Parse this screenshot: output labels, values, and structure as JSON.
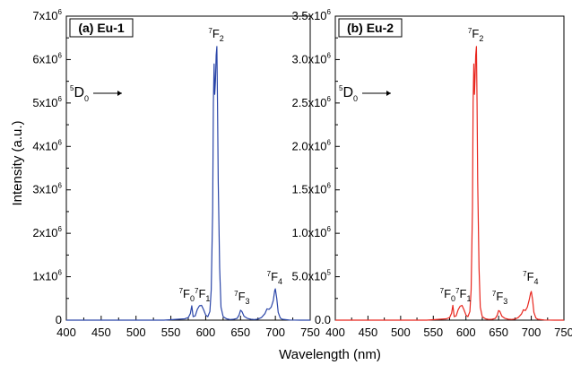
{
  "x_axis_label": "Wavelength (nm)",
  "y_axis_label": "Intensity (a.u.)",
  "chart_data": [
    {
      "type": "line",
      "panel_title": "(a) Eu-1",
      "color": "#2b46a8",
      "xlim": [
        400,
        750
      ],
      "ylim": [
        0,
        7000000
      ],
      "x_ticks": [
        "400",
        "450",
        "500",
        "550",
        "600",
        "650",
        "700",
        "750"
      ],
      "y_ticks": [
        {
          "mant": "0",
          "exp": ""
        },
        {
          "mant": "1x10",
          "exp": "6"
        },
        {
          "mant": "2x10",
          "exp": "6"
        },
        {
          "mant": "3x10",
          "exp": "6"
        },
        {
          "mant": "4x10",
          "exp": "6"
        },
        {
          "mant": "5x10",
          "exp": "6"
        },
        {
          "mant": "6x10",
          "exp": "6"
        },
        {
          "mant": "7x10",
          "exp": "6"
        }
      ],
      "annotations": {
        "d0": {
          "sup": "5",
          "base": "D",
          "sub": "0"
        },
        "f2": {
          "sup": "7",
          "base": "F",
          "sub": "2"
        },
        "f0f1": {
          "sup1": "7",
          "base1": "F",
          "sub1": "0",
          "sup2": "7",
          "base2": "F",
          "sub2": "1"
        },
        "f3": {
          "sup": "7",
          "base": "F",
          "sub": "3"
        },
        "f4": {
          "sup": "7",
          "base": "F",
          "sub": "4"
        }
      },
      "series": [
        {
          "x": [
            400,
            450,
            500,
            540,
            560,
            570,
            575,
            578,
            580,
            582,
            585,
            588,
            591,
            594,
            597,
            600,
            603,
            606,
            608,
            610,
            611,
            612,
            613,
            614,
            615,
            616,
            617,
            618,
            620,
            622,
            625,
            630,
            635,
            640,
            645,
            648,
            650,
            652,
            655,
            660,
            665,
            670,
            675,
            680,
            685,
            688,
            691,
            694,
            697,
            699,
            700,
            702,
            704,
            707,
            710,
            720,
            735,
            750
          ],
          "y": [
            0,
            0,
            0,
            0,
            20000,
            30000,
            60000,
            150000,
            330000,
            80000,
            100000,
            250000,
            330000,
            340000,
            240000,
            120000,
            80000,
            200000,
            700000,
            2500000,
            5000000,
            5900000,
            5200000,
            5500000,
            6100000,
            6300000,
            5000000,
            3200000,
            1200000,
            300000,
            80000,
            30000,
            15000,
            20000,
            40000,
            120000,
            230000,
            200000,
            90000,
            40000,
            20000,
            15000,
            25000,
            60000,
            150000,
            260000,
            250000,
            300000,
            450000,
            680000,
            720000,
            500000,
            180000,
            50000,
            20000,
            5000,
            0,
            0
          ]
        }
      ]
    },
    {
      "type": "line",
      "panel_title": "(b) Eu-2",
      "color": "#e8261e",
      "xlim": [
        400,
        750
      ],
      "ylim": [
        0,
        3500000
      ],
      "x_ticks": [
        "400",
        "450",
        "500",
        "550",
        "600",
        "650",
        "700",
        "750"
      ],
      "y_ticks": [
        {
          "mant": "0.0",
          "exp": ""
        },
        {
          "mant": "5.0x10",
          "exp": "5"
        },
        {
          "mant": "1.0x10",
          "exp": "6"
        },
        {
          "mant": "1.5x10",
          "exp": "6"
        },
        {
          "mant": "2.0x10",
          "exp": "6"
        },
        {
          "mant": "2.5x10",
          "exp": "6"
        },
        {
          "mant": "3.0x10",
          "exp": "6"
        },
        {
          "mant": "3.5x10",
          "exp": "6"
        }
      ],
      "annotations": {
        "d0": {
          "sup": "5",
          "base": "D",
          "sub": "0"
        },
        "f2": {
          "sup": "7",
          "base": "F",
          "sub": "2"
        },
        "f0f1": {
          "sup1": "7",
          "base1": "F",
          "sub1": "0",
          "sup2": "7",
          "base2": "F",
          "sub2": "1"
        },
        "f3": {
          "sup": "7",
          "base": "F",
          "sub": "3"
        },
        "f4": {
          "sup": "7",
          "base": "F",
          "sub": "4"
        }
      },
      "series": [
        {
          "x": [
            400,
            450,
            500,
            540,
            560,
            570,
            575,
            578,
            580,
            582,
            585,
            588,
            591,
            594,
            597,
            600,
            603,
            606,
            608,
            610,
            611,
            612,
            613,
            614,
            615,
            616,
            617,
            618,
            620,
            622,
            625,
            630,
            635,
            640,
            645,
            648,
            650,
            652,
            655,
            660,
            665,
            670,
            675,
            680,
            685,
            688,
            691,
            694,
            697,
            699,
            700,
            702,
            704,
            707,
            710,
            720,
            735,
            750
          ],
          "y": [
            0,
            0,
            0,
            0,
            10000,
            15000,
            30000,
            80000,
            170000,
            40000,
            50000,
            120000,
            160000,
            170000,
            120000,
            60000,
            40000,
            100000,
            350000,
            1300000,
            2500000,
            2950000,
            2600000,
            2800000,
            3050000,
            3150000,
            2500000,
            1600000,
            600000,
            150000,
            40000,
            15000,
            8000,
            10000,
            20000,
            60000,
            110000,
            100000,
            45000,
            20000,
            10000,
            8000,
            12000,
            30000,
            70000,
            120000,
            110000,
            150000,
            240000,
            310000,
            330000,
            240000,
            90000,
            25000,
            10000,
            2500,
            0,
            0
          ]
        }
      ]
    }
  ]
}
